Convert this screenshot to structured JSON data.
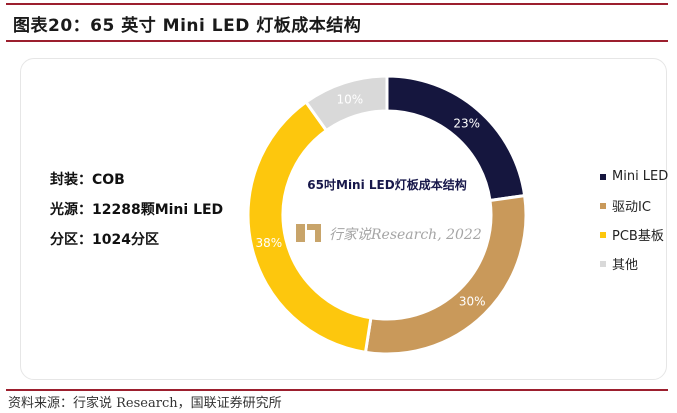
{
  "title": "图表20：65 英寸 Mini LED 灯板成本结构",
  "specs": [
    "封装：COB",
    "光源：12288颗Mini LED",
    "分区：1024分区"
  ],
  "watermark": "行家说Research, 2022",
  "source": "资料来源：行家说 Research，国联证券研究所",
  "chart_data": {
    "type": "pie",
    "variant": "donut",
    "title": "65吋Mini LED灯板成本结构",
    "categories": [
      "Mini LED",
      "驱动IC",
      "PCB基板",
      "其他"
    ],
    "values": [
      23,
      30,
      38,
      10
    ],
    "labels": [
      "23%",
      "30%",
      "38%",
      "10%"
    ],
    "colors": [
      "#15163e",
      "#c9995a",
      "#fdc70d",
      "#d9d9d9"
    ],
    "label_colors": [
      "#ffffff",
      "#ffffff",
      "#ffffff",
      "#ffffff"
    ],
    "legend_position": "right"
  }
}
